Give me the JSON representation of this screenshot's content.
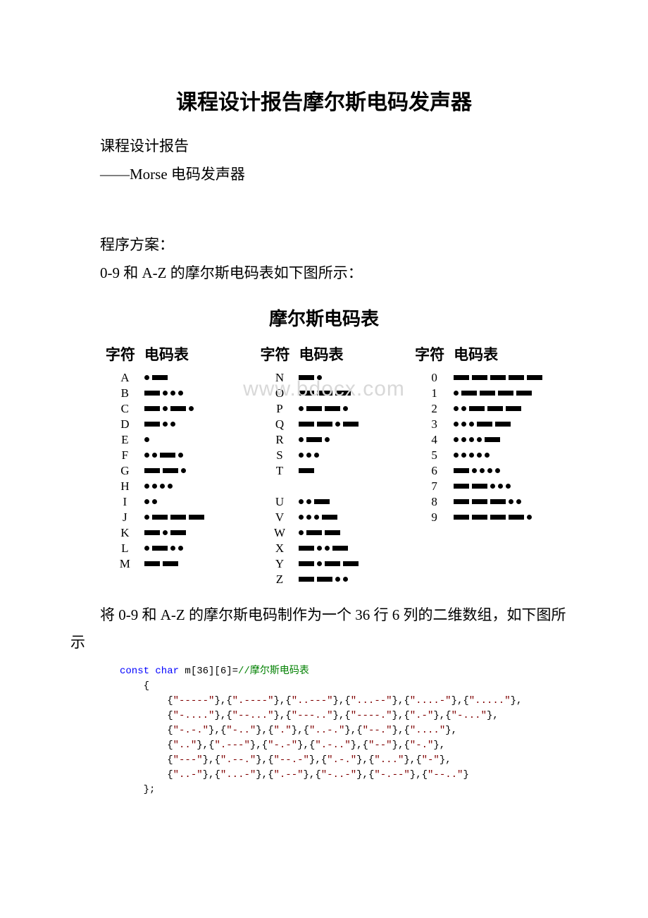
{
  "title": "课程设计报告摩尔斯电码发声器",
  "paragraphs": {
    "p1": "课程设计报告",
    "p2": "——Morse 电码发声器",
    "p3": "程序方案：",
    "p4": "0-9 和 A-Z 的摩尔斯电码表如下图所示：",
    "tableTitle": "摩尔斯电码表",
    "p5": "将 0-9 和 A-Z 的摩尔斯电码制作为一个 36 行 6 列的二维数组，如下图所示",
    "headerChar": "字符",
    "headerCode": "电码表"
  },
  "watermark": "www.bdocx.com",
  "columns": [
    {
      "rows": [
        {
          "char": "A",
          "code": ".-"
        },
        {
          "char": "B",
          "code": "-..."
        },
        {
          "char": "C",
          "code": "-.-."
        },
        {
          "char": "D",
          "code": "-.."
        },
        {
          "char": "E",
          "code": "."
        },
        {
          "char": "F",
          "code": "..-."
        },
        {
          "char": "G",
          "code": "--."
        },
        {
          "char": "H",
          "code": "...."
        },
        {
          "char": "I",
          "code": ".."
        },
        {
          "char": "J",
          "code": ".---"
        },
        {
          "char": "K",
          "code": "-.-"
        },
        {
          "char": "L",
          "code": ".-.."
        },
        {
          "char": "M",
          "code": "--"
        }
      ]
    },
    {
      "rows": [
        {
          "char": "N",
          "code": "-."
        },
        {
          "char": "O",
          "code": "---"
        },
        {
          "char": "P",
          "code": ".--."
        },
        {
          "char": "Q",
          "code": "--.-"
        },
        {
          "char": "R",
          "code": ".-."
        },
        {
          "char": "S",
          "code": "..."
        },
        {
          "char": "T",
          "code": "-"
        },
        {
          "char": "",
          "code": ""
        },
        {
          "char": "U",
          "code": "..-"
        },
        {
          "char": "V",
          "code": "...-"
        },
        {
          "char": "W",
          "code": ".--"
        },
        {
          "char": "X",
          "code": "-..-"
        },
        {
          "char": "Y",
          "code": "-.--"
        },
        {
          "char": "Z",
          "code": "--.."
        }
      ]
    },
    {
      "rows": [
        {
          "char": "0",
          "code": "-----"
        },
        {
          "char": "1",
          "code": ".----"
        },
        {
          "char": "2",
          "code": "..---"
        },
        {
          "char": "3",
          "code": "...--"
        },
        {
          "char": "4",
          "code": "....-"
        },
        {
          "char": "5",
          "code": "....."
        },
        {
          "char": "6",
          "code": "-...."
        },
        {
          "char": "7",
          "code": "--..."
        },
        {
          "char": "8",
          "code": "---.."
        },
        {
          "char": "9",
          "code": "----."
        }
      ]
    }
  ],
  "code": {
    "kw_const_char": "const char",
    "decl": " m[36][6]=",
    "comment": "//摩尔斯电码表",
    "brace_open": "{",
    "brace_close": "};",
    "lines": [
      "{\"-----\"},{\".----\"},{\"..---\"},{\"...--\"},{\"....-\"},{\".....\"},",
      "{\"-....\"},{\"--...\"},{\"---..\"},{\"----.\"},{\".-\"},{\"-...\"},",
      "{\"-.-.\"},{\"-..\"},{\".\"},{\"..-.\"},{\"--.\"},{\"....\"},",
      "{\"..\"},{\".---\"},{\"-.-\"},{\".-..\"},{\"--\"},{\"-.\"},",
      "{\"---\"},{\".--.\"},{\"--.-\"},{\".-.\"},{\"...\"},{\"-\"},",
      "{\"..-\"},{\"...-\"},{\".--\"},{\"-..-\"},{\"-.--\"},{\"--..\"}"
    ]
  },
  "colors": {
    "text": "#000000",
    "bg": "#ffffff",
    "watermark": "#d8d8d8",
    "blue": "#0000ff",
    "green": "#008000",
    "dark": "#800000"
  }
}
